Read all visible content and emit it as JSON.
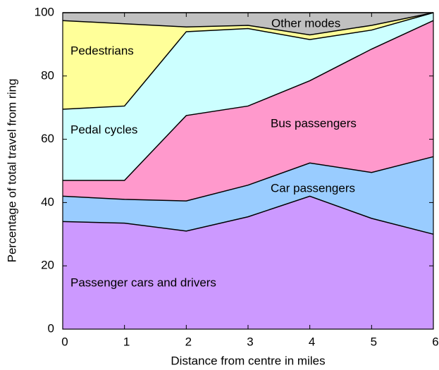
{
  "chart_data": {
    "type": "stacked_area",
    "xlabel": "Distance from centre in miles",
    "ylabel": "Percentage of total travel from ring",
    "x": [
      0,
      1,
      2,
      3,
      4,
      5,
      6
    ],
    "series": [
      {
        "name": "Passenger cars and drivers",
        "color": "#cc99ff",
        "values": [
          34,
          33.5,
          31,
          35.5,
          42,
          35,
          30
        ]
      },
      {
        "name": "Car passengers",
        "color": "#99ccff",
        "values": [
          8,
          7.5,
          9.5,
          10,
          10.5,
          14.5,
          24.5
        ]
      },
      {
        "name": "Bus passengers",
        "color": "#ff99cc",
        "values": [
          5,
          6,
          27,
          25,
          26,
          39,
          43
        ]
      },
      {
        "name": "Pedal cycles",
        "color": "#ccffff",
        "values": [
          22.5,
          23.5,
          26.5,
          24.5,
          13,
          6,
          2.5
        ]
      },
      {
        "name": "Pedestrians",
        "color": "#ffff99",
        "values": [
          28,
          26,
          1.5,
          1,
          1.5,
          1.5,
          0
        ]
      },
      {
        "name": "Other modes",
        "color": "#c0c0c0",
        "values": [
          2.5,
          3.5,
          4.5,
          4,
          7,
          4,
          0
        ]
      }
    ],
    "xlim": [
      0,
      6
    ],
    "ylim": [
      0,
      100
    ],
    "xticks": [
      0,
      1,
      2,
      3,
      4,
      5,
      6
    ],
    "yticks": [
      0,
      20,
      40,
      60,
      80,
      100
    ]
  }
}
